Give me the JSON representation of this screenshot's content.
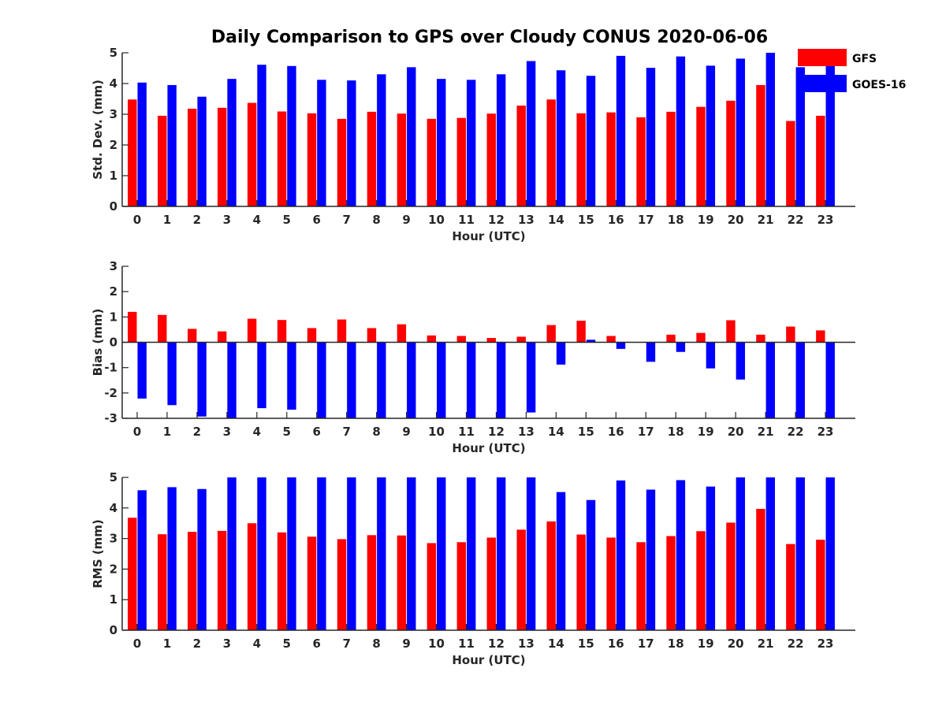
{
  "figure": {
    "title": "Daily Comparison to GPS over Cloudy CONUS 2020-06-06",
    "colors": {
      "GFS": "#ff0000",
      "GOES-16": "#0000ff"
    },
    "legend": {
      "placement": "top-right",
      "entries": [
        "GFS",
        "GOES-16"
      ]
    }
  },
  "chart_data": [
    {
      "type": "bar",
      "title": "",
      "xlabel": "Hour (UTC)",
      "ylabel": "Std. Dev. (mm)",
      "ylim": [
        0,
        5
      ],
      "yticks": [
        0,
        1,
        2,
        3,
        4,
        5
      ],
      "categories": [
        "0",
        "1",
        "2",
        "3",
        "4",
        "5",
        "6",
        "7",
        "8",
        "9",
        "10",
        "11",
        "12",
        "13",
        "14",
        "15",
        "16",
        "17",
        "18",
        "19",
        "20",
        "21",
        "22",
        "23"
      ],
      "series": [
        {
          "name": "GFS",
          "values": [
            3.48,
            2.95,
            3.18,
            3.21,
            3.37,
            3.09,
            3.03,
            2.85,
            3.08,
            3.02,
            2.85,
            2.88,
            3.02,
            3.28,
            3.48,
            3.03,
            3.06,
            2.9,
            3.08,
            3.24,
            3.44,
            3.95,
            2.78,
            2.95
          ]
        },
        {
          "name": "GOES-16",
          "values": [
            4.03,
            3.95,
            3.57,
            4.15,
            4.61,
            4.57,
            4.12,
            4.1,
            4.3,
            4.53,
            4.15,
            4.12,
            4.3,
            4.73,
            4.43,
            4.25,
            4.9,
            4.51,
            4.88,
            4.58,
            4.81,
            5.0,
            4.53,
            4.7
          ]
        }
      ]
    },
    {
      "type": "bar",
      "title": "",
      "xlabel": "Hour (UTC)",
      "ylabel": "Bias (mm)",
      "ylim": [
        -3,
        3
      ],
      "yticks": [
        -3,
        -2,
        -1,
        0,
        1,
        2,
        3
      ],
      "categories": [
        "0",
        "1",
        "2",
        "3",
        "4",
        "5",
        "6",
        "7",
        "8",
        "9",
        "10",
        "11",
        "12",
        "13",
        "14",
        "15",
        "16",
        "17",
        "18",
        "19",
        "20",
        "21",
        "22",
        "23"
      ],
      "series": [
        {
          "name": "GFS",
          "values": [
            1.2,
            1.08,
            0.53,
            0.43,
            0.93,
            0.88,
            0.56,
            0.9,
            0.56,
            0.71,
            0.27,
            0.25,
            0.17,
            0.22,
            0.68,
            0.85,
            0.25,
            0.0,
            0.3,
            0.37,
            0.87,
            0.3,
            0.62,
            0.47
          ]
        },
        {
          "name": "GOES-16",
          "values": [
            -2.22,
            -2.48,
            -2.93,
            -3.0,
            -2.6,
            -2.66,
            -3.0,
            -3.0,
            -3.0,
            -3.0,
            -3.0,
            -3.0,
            -3.0,
            -2.77,
            -0.88,
            0.1,
            -0.26,
            -0.77,
            -0.38,
            -1.03,
            -1.47,
            -3.0,
            -3.0,
            -3.0
          ]
        }
      ]
    },
    {
      "type": "bar",
      "title": "",
      "xlabel": "Hour (UTC)",
      "ylabel": "RMS (mm)",
      "ylim": [
        0,
        5
      ],
      "yticks": [
        0,
        1,
        2,
        3,
        4,
        5
      ],
      "categories": [
        "0",
        "1",
        "2",
        "3",
        "4",
        "5",
        "6",
        "7",
        "8",
        "9",
        "10",
        "11",
        "12",
        "13",
        "14",
        "15",
        "16",
        "17",
        "18",
        "19",
        "20",
        "21",
        "22",
        "23"
      ],
      "series": [
        {
          "name": "GFS",
          "values": [
            3.68,
            3.14,
            3.22,
            3.25,
            3.5,
            3.2,
            3.06,
            2.98,
            3.11,
            3.1,
            2.85,
            2.88,
            3.03,
            3.29,
            3.56,
            3.13,
            3.03,
            2.88,
            3.08,
            3.24,
            3.52,
            3.97,
            2.82,
            2.96
          ]
        },
        {
          "name": "GOES-16",
          "values": [
            4.58,
            4.68,
            4.62,
            5.0,
            5.0,
            5.0,
            5.0,
            5.0,
            5.0,
            5.0,
            5.0,
            5.0,
            5.0,
            5.0,
            4.52,
            4.26,
            4.9,
            4.6,
            4.91,
            4.7,
            5.0,
            5.0,
            5.0,
            5.0
          ]
        }
      ]
    }
  ]
}
